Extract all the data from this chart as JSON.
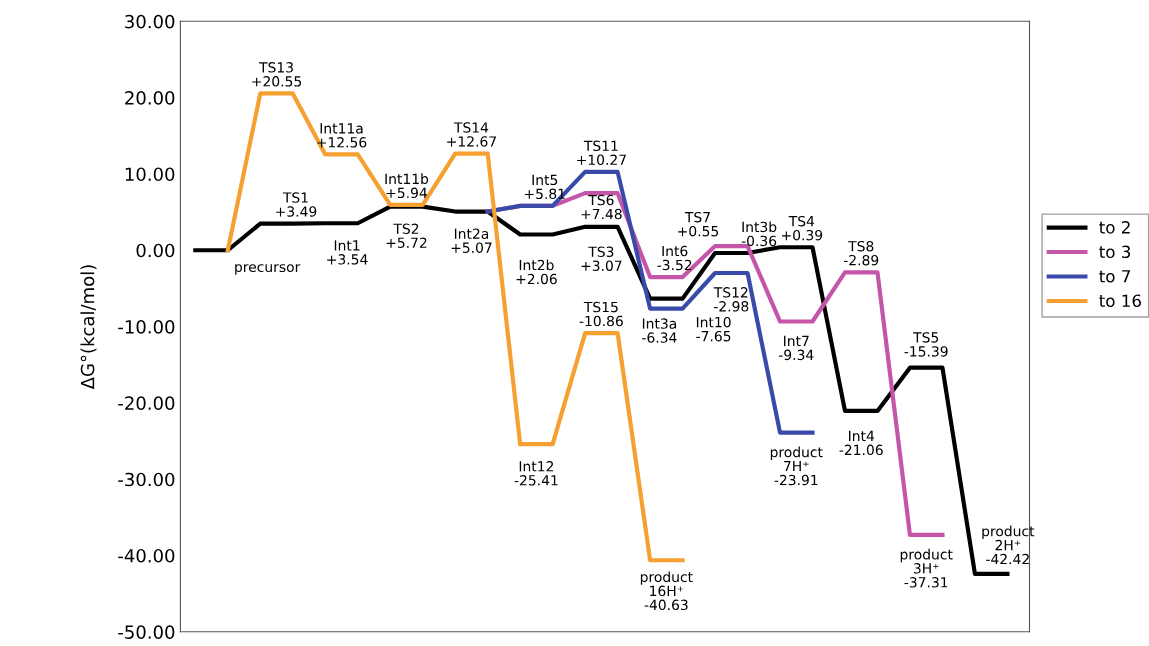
{
  "chart_data": {
    "type": "line",
    "ylabel": "ΔG°(kcal/mol)",
    "categories": [
      null,
      null,
      null,
      null,
      null,
      null,
      null,
      null,
      null,
      null,
      null,
      null,
      null,
      null,
      null,
      null,
      null,
      null,
      null,
      null,
      null,
      null,
      null,
      null,
      null,
      null
    ],
    "series": [
      {
        "name": "to 2",
        "color": "#000000",
        "values": [
          0,
          0,
          3.49,
          3.49,
          3.54,
          3.54,
          5.72,
          5.72,
          5.07,
          5.07,
          2.06,
          2.06,
          3.07,
          3.07,
          -6.34,
          -6.34,
          -0.36,
          -0.36,
          0.39,
          0.39,
          -21.06,
          -21.06,
          -15.39,
          -15.39,
          -42.42,
          -42.42
        ]
      },
      {
        "name": "to 3",
        "color": "#c555a8",
        "values": [
          null,
          null,
          null,
          null,
          null,
          null,
          null,
          null,
          null,
          5.07,
          5.81,
          5.81,
          7.48,
          7.48,
          -3.52,
          -3.52,
          0.55,
          0.55,
          -9.34,
          -9.34,
          -2.89,
          -2.89,
          -37.31,
          -37.31,
          null,
          null
        ]
      },
      {
        "name": "to 7",
        "color": "#3a4aa8",
        "values": [
          null,
          null,
          null,
          null,
          null,
          null,
          null,
          null,
          null,
          5.07,
          5.81,
          5.81,
          10.27,
          10.27,
          -7.65,
          -7.65,
          -2.98,
          -2.98,
          -23.91,
          -23.91,
          null,
          null,
          null,
          null,
          null,
          null
        ]
      },
      {
        "name": "to 16",
        "color": "#f5a030",
        "values": [
          null,
          0,
          20.55,
          20.55,
          12.56,
          12.56,
          5.94,
          5.94,
          12.67,
          12.67,
          -25.41,
          -25.41,
          -10.86,
          -10.86,
          -40.63,
          -40.63,
          null,
          null,
          null,
          null,
          null,
          null,
          null,
          null,
          null,
          null
        ]
      }
    ],
    "ylim": [
      -50,
      30
    ],
    "yticks": [
      {
        "value": -50,
        "label": "-50.00"
      },
      {
        "value": -40,
        "label": "-40.00"
      },
      {
        "value": -30,
        "label": "-30.00"
      },
      {
        "value": -20,
        "label": "-20.00"
      },
      {
        "value": -10,
        "label": "-10.00"
      },
      {
        "value": 0,
        "label": "0.00"
      },
      {
        "value": 10,
        "label": "10.00"
      },
      {
        "value": 20,
        "label": "20.00"
      },
      {
        "value": 30,
        "label": "30.00"
      }
    ],
    "tick_labels": "y",
    "grid": false,
    "legend": "right",
    "marker": "none",
    "line_style": "solid",
    "annotations": [
      "precursor",
      {
        "text": "TS13\n+20.55",
        "y": 20.55
      },
      {
        "text": "Int11a\n+12.56",
        "y": 12.56
      },
      {
        "text": "Int11b\n+5.94",
        "y": 5.94
      },
      {
        "text": "TS14\n+12.67",
        "y": 12.67
      },
      {
        "text": "TS1\n+3.49",
        "y": 3.49
      },
      {
        "text": "Int1\n+3.54",
        "y": 3.54
      },
      {
        "text": "TS2\n+5.72",
        "y": 5.72
      },
      {
        "text": "Int2a\n+5.07",
        "y": 5.07
      },
      {
        "text": "Int5\n+5.81",
        "y": 5.81
      },
      {
        "text": "Int2b\n+2.06",
        "y": 2.06
      },
      {
        "text": "TS11\n+10.27",
        "y": 10.27
      },
      {
        "text": "TS6\n+7.48",
        "y": 7.48
      },
      {
        "text": "TS3\n+3.07",
        "y": 3.07
      },
      {
        "text": "Int6\n-3.52",
        "y": -3.52
      },
      {
        "text": "Int3a\n-6.34",
        "y": -6.34
      },
      "Int10\n-7.65",
      {
        "text": "TS15\n-10.86",
        "y": -10.86
      },
      {
        "text": "Int12\n-25.41",
        "y": -25.41
      },
      {
        "text": "product\n16H⁺\n-40.63",
        "y": -40.63
      },
      "TS7\n+0.55",
      {
        "text": "Int3b\n-0.36",
        "y": -0.36
      },
      {
        "text": "TS12\n-2.98",
        "y": -2.98
      },
      {
        "text": "TS4\n+0.39",
        "y": 0.39
      },
      {
        "text": "Int7\n-9.34",
        "y": -9.34
      },
      {
        "text": "product\n7H⁺\n-23.91",
        "y": -23.91
      },
      {
        "text": "TS8\n-2.89",
        "y": -2.89
      },
      {
        "text": "Int4\n-21.06",
        "y": -21.06
      },
      {
        "text": "TS5\n-15.39",
        "y": -15.39
      },
      {
        "text": "product\n3H⁺\n-37.31",
        "y": -37.31
      },
      {
        "text": "product\n2H⁺\n-42.42",
        "y": -42.42
      }
    ]
  }
}
